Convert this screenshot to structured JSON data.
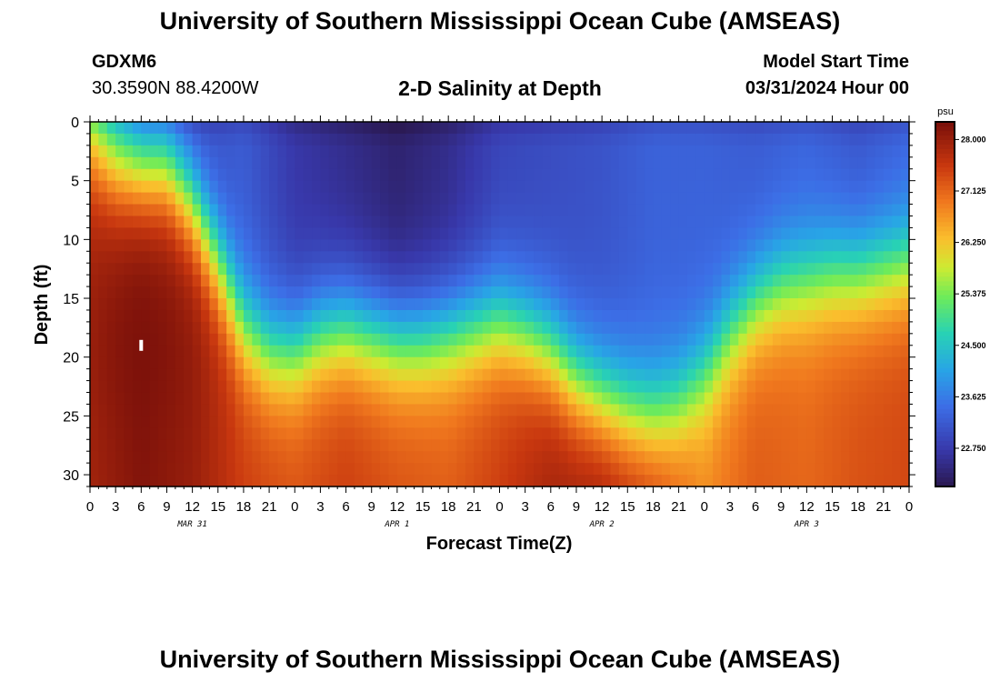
{
  "header": {
    "title_top": "University of Southern Mississippi Ocean Cube (AMSEAS)",
    "title_bottom": "University of Southern Mississippi Ocean Cube (AMSEAS)",
    "station_id": "GDXM6",
    "station_coords": "30.3590N  88.4200W",
    "plot_title": "2-D Salinity at Depth",
    "model_start_label": "Model Start Time",
    "model_start_value": "03/31/2024 Hour 00"
  },
  "chart_data": {
    "type": "heatmap",
    "title": "2-D Salinity at Depth",
    "xlabel": "Forecast Time(Z)",
    "ylabel": "Depth (ft)",
    "x_range": [
      0,
      96
    ],
    "y_range": [
      0,
      31
    ],
    "y_ticks": [
      0,
      5,
      10,
      15,
      20,
      25,
      30
    ],
    "x_tick_labels": [
      "0",
      "3",
      "6",
      "9",
      "12",
      "15",
      "18",
      "21",
      "0",
      "3",
      "6",
      "9",
      "12",
      "15",
      "18",
      "21",
      "0",
      "3",
      "6",
      "9",
      "12",
      "15",
      "18",
      "21",
      "0",
      "3",
      "6",
      "9",
      "12",
      "15",
      "18",
      "21",
      "0"
    ],
    "x_tick_hours": [
      0,
      3,
      6,
      9,
      12,
      15,
      18,
      21,
      24,
      27,
      30,
      33,
      36,
      39,
      42,
      45,
      48,
      51,
      54,
      57,
      60,
      63,
      66,
      69,
      72,
      75,
      78,
      81,
      84,
      87,
      90,
      93,
      96
    ],
    "day_labels": [
      {
        "text": "MAR 31",
        "hour": 12
      },
      {
        "text": "APR 1",
        "hour": 36
      },
      {
        "text": "APR 2",
        "hour": 60
      },
      {
        "text": "APR 3",
        "hour": 84
      }
    ],
    "colorbar": {
      "unit": "psu",
      "min": 22.1,
      "max": 28.3,
      "labels": [
        "28.000",
        "27.125",
        "26.250",
        "25.375",
        "24.500",
        "23.625",
        "22.750"
      ],
      "label_values": [
        28.0,
        27.125,
        26.25,
        25.375,
        24.5,
        23.625,
        22.75
      ]
    },
    "halocline_depth_ft": {
      "hours": [
        0,
        3,
        6,
        9,
        12,
        15,
        18,
        21,
        24,
        27,
        30,
        33,
        36,
        39,
        42,
        45,
        48,
        51,
        54,
        57,
        60,
        63,
        66,
        69,
        72,
        75,
        78,
        81,
        84,
        87,
        90,
        93,
        96
      ],
      "depths": [
        1.5,
        3.5,
        4,
        4,
        7,
        12,
        17.5,
        19.5,
        19.5,
        18,
        17.5,
        18,
        18.5,
        18.5,
        18,
        17.5,
        17,
        18,
        19.5,
        22,
        23.5,
        24.5,
        25,
        24,
        21.5,
        18,
        15.5,
        14,
        13.5,
        13,
        13,
        12.5,
        12
      ]
    },
    "surface_salinity_psu": {
      "hours": [
        0,
        6,
        12,
        18,
        24,
        30,
        36,
        42,
        48,
        54,
        60,
        66,
        72,
        78,
        84,
        90,
        96
      ],
      "values": [
        24.3,
        23.0,
        22.9,
        23.2,
        22.7,
        22.5,
        22.3,
        22.5,
        22.9,
        23.0,
        23.1,
        23.3,
        23.3,
        23.2,
        23.3,
        23.1,
        23.3
      ]
    },
    "bottom_salinity_psu": {
      "hours": [
        0,
        6,
        12,
        18,
        24,
        30,
        36,
        42,
        48,
        54,
        60,
        66,
        72,
        78,
        84,
        90,
        96
      ],
      "values": [
        27.9,
        28.2,
        28.0,
        27.5,
        27.3,
        27.5,
        27.3,
        27.2,
        27.5,
        27.9,
        28.0,
        27.6,
        26.8,
        27.2,
        27.1,
        27.3,
        27.4
      ]
    },
    "max_core": {
      "hour": 6,
      "depth_ft": 19,
      "value_psu": 28.3
    },
    "marker": {
      "hour": 6,
      "depth_ft": 19
    }
  },
  "colors": {
    "low": "#2a1850",
    "high": "#7a0f0a"
  }
}
